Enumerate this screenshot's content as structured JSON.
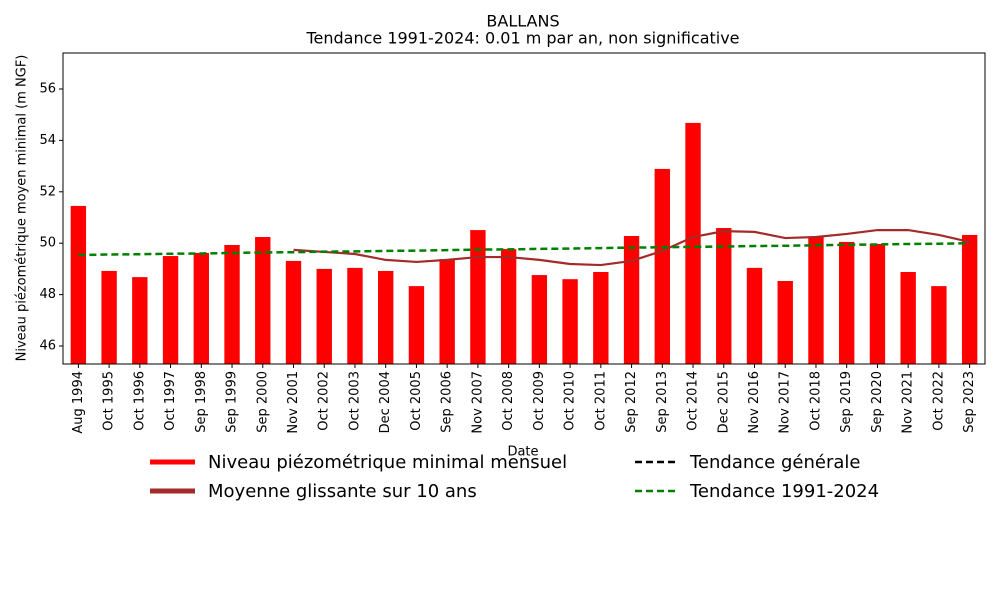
{
  "chart_data": {
    "type": "bar",
    "title": "BALLANS",
    "subtitle": "Tendance 1991-2024: 0.01 m par an, non significative",
    "xlabel": "Date",
    "ylabel": "Niveau piézométrique moyen minimal (m NGF)",
    "categories": [
      "Aug 1994",
      "Oct 1995",
      "Oct 1996",
      "Oct 1997",
      "Sep 1998",
      "Sep 1999",
      "Sep 2000",
      "Nov 2001",
      "Oct 2002",
      "Oct 2003",
      "Dec 2004",
      "Oct 2005",
      "Sep 2006",
      "Nov 2007",
      "Oct 2008",
      "Oct 2009",
      "Oct 2010",
      "Oct 2011",
      "Sep 2012",
      "Sep 2013",
      "Oct 2014",
      "Dec 2015",
      "Nov 2016",
      "Nov 2017",
      "Oct 2018",
      "Sep 2019",
      "Sep 2020",
      "Nov 2021",
      "Oct 2022",
      "Sep 2023"
    ],
    "series": [
      {
        "name": "Niveau piézométrique minimal mensuel",
        "type": "bar",
        "color": "#ff0000",
        "values": [
          51.45,
          48.92,
          48.68,
          49.5,
          49.62,
          49.93,
          50.24,
          49.31,
          49.0,
          49.04,
          48.92,
          48.33,
          49.38,
          50.51,
          49.77,
          48.76,
          48.6,
          48.88,
          50.28,
          52.89,
          54.68,
          50.59,
          49.04,
          48.53,
          50.24,
          50.05,
          49.97,
          48.88,
          48.33,
          50.32
        ]
      },
      {
        "name": "Moyenne glissante sur 10 ans",
        "type": "line",
        "style": "solid",
        "color": "#a52a2a",
        "values": [
          null,
          null,
          null,
          null,
          null,
          null,
          null,
          49.74,
          49.66,
          49.58,
          49.35,
          49.27,
          49.35,
          49.46,
          49.46,
          49.35,
          49.19,
          49.15,
          49.31,
          49.7,
          50.24,
          50.47,
          50.44,
          50.2,
          50.24,
          50.36,
          50.51,
          50.51,
          50.32,
          50.05
        ]
      },
      {
        "name": "Tendance générale",
        "type": "line",
        "style": "dashed",
        "color": "#000000",
        "values": [
          null,
          null,
          null,
          null,
          null,
          null,
          null,
          null,
          null,
          null,
          null,
          null,
          null,
          null,
          null,
          null,
          null,
          null,
          null,
          null,
          null,
          null,
          null,
          null,
          null,
          null,
          null,
          null,
          null,
          null
        ]
      },
      {
        "name": "Tendance 1991-2024",
        "type": "line",
        "style": "dashed",
        "color": "#008000",
        "values": [
          49.54,
          49.56,
          49.57,
          49.59,
          49.6,
          49.62,
          49.64,
          49.65,
          49.67,
          49.68,
          49.7,
          49.71,
          49.73,
          49.75,
          49.76,
          49.78,
          49.79,
          49.81,
          49.83,
          49.84,
          49.86,
          49.87,
          49.89,
          49.9,
          49.92,
          49.94,
          49.95,
          49.97,
          49.98,
          50.0
        ]
      }
    ],
    "ylim": [
      45.3,
      57.4
    ],
    "yticks": [
      46,
      48,
      50,
      52,
      54,
      56
    ],
    "grid": false
  }
}
